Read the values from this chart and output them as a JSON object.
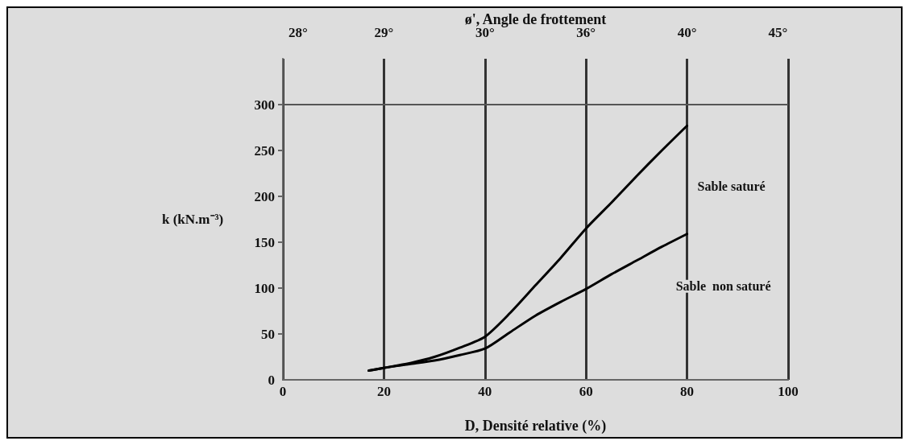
{
  "chart_data": {
    "type": "line",
    "xlabel": "D, Densité relative (%)",
    "ylabel": "k (kN.m⁻³)",
    "x2label": "ø', Angle de frottement",
    "xlim": [
      0,
      100
    ],
    "xticks": [
      0,
      20,
      40,
      60,
      80,
      100
    ],
    "annotations": [
      "28°",
      "29°",
      "30°",
      "36°",
      "40°",
      "45°"
    ],
    "ylim": [
      0,
      350
    ],
    "yticks": [
      0,
      50,
      100,
      150,
      200,
      250,
      300
    ],
    "grid": "x",
    "marker": "none",
    "line_style": "solid",
    "ref_lines": [
      {
        "axis": "y",
        "value": 300,
        "label": null,
        "color": "#555555"
      }
    ],
    "series": [
      {
        "name": "Sable saturé",
        "color": "#000000",
        "x": [
          17,
          20,
          25,
          30,
          35,
          40,
          45,
          50,
          55,
          60,
          65,
          70,
          75,
          80
        ],
        "values": [
          10,
          13,
          18,
          25,
          35,
          47,
          73,
          103,
          133,
          165,
          193,
          222,
          250,
          277
        ]
      },
      {
        "name": "Sable  non saturé",
        "color": "#000000",
        "x": [
          17,
          20,
          25,
          30,
          35,
          40,
          45,
          50,
          55,
          60,
          65,
          70,
          75,
          80
        ],
        "values": [
          10,
          13,
          17,
          21,
          27,
          34,
          52,
          70,
          85,
          99,
          115,
          130,
          145,
          159
        ]
      }
    ]
  }
}
